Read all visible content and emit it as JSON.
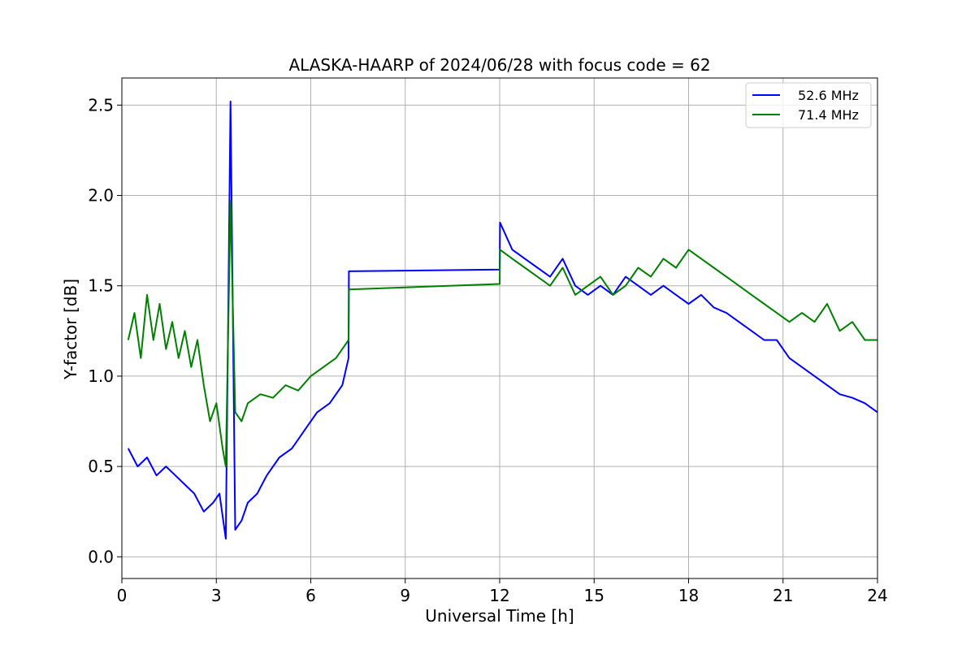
{
  "chart_data": {
    "type": "line",
    "title": "ALASKA-HAARP of 2024/06/28 with focus code = 62",
    "xlabel": "Universal Time [h]",
    "ylabel": "Y-factor [dB]",
    "xlim": [
      0,
      24
    ],
    "ylim": [
      -0.12,
      2.65
    ],
    "xticks": [
      0,
      3,
      6,
      9,
      12,
      15,
      18,
      21,
      24
    ],
    "xtick_labels": [
      "0",
      "3",
      "6",
      "9",
      "12",
      "15",
      "18",
      "21",
      "24"
    ],
    "yticks": [
      0.0,
      0.5,
      1.0,
      1.5,
      2.0,
      2.5
    ],
    "ytick_labels": [
      "0.0",
      "0.5",
      "1.0",
      "1.5",
      "2.0",
      "2.5"
    ],
    "grid": true,
    "legend_position": "upper right",
    "series": [
      {
        "name": "52.6 MHz",
        "color": "#0000ff",
        "x": [
          0.2,
          0.5,
          0.8,
          1.1,
          1.4,
          1.7,
          2.0,
          2.3,
          2.6,
          2.9,
          3.1,
          3.3,
          3.45,
          3.6,
          3.8,
          4.0,
          4.3,
          4.6,
          5.0,
          5.4,
          5.8,
          6.2,
          6.6,
          7.0,
          7.2,
          7.21,
          12.0,
          12.01,
          12.4,
          12.8,
          13.2,
          13.6,
          14.0,
          14.4,
          14.8,
          15.2,
          15.6,
          16.0,
          16.4,
          16.8,
          17.2,
          17.6,
          18.0,
          18.4,
          18.8,
          19.2,
          19.6,
          20.0,
          20.4,
          20.8,
          21.2,
          21.6,
          22.0,
          22.4,
          22.8,
          23.2,
          23.6,
          24.0
        ],
        "y": [
          0.6,
          0.5,
          0.55,
          0.45,
          0.5,
          0.45,
          0.4,
          0.35,
          0.25,
          0.3,
          0.35,
          0.1,
          2.52,
          0.15,
          0.2,
          0.3,
          0.35,
          0.45,
          0.55,
          0.6,
          0.7,
          0.8,
          0.85,
          0.95,
          1.1,
          1.58,
          1.59,
          1.85,
          1.7,
          1.65,
          1.6,
          1.55,
          1.65,
          1.5,
          1.45,
          1.5,
          1.45,
          1.55,
          1.5,
          1.45,
          1.5,
          1.45,
          1.4,
          1.45,
          1.38,
          1.35,
          1.3,
          1.25,
          1.2,
          1.2,
          1.1,
          1.05,
          1.0,
          0.95,
          0.9,
          0.88,
          0.85,
          0.8
        ]
      },
      {
        "name": "71.4 MHz",
        "color": "#008000",
        "x": [
          0.2,
          0.4,
          0.6,
          0.8,
          1.0,
          1.2,
          1.4,
          1.6,
          1.8,
          2.0,
          2.2,
          2.4,
          2.6,
          2.8,
          3.0,
          3.2,
          3.3,
          3.45,
          3.6,
          3.8,
          4.0,
          4.4,
          4.8,
          5.2,
          5.6,
          6.0,
          6.4,
          6.8,
          7.0,
          7.2,
          7.21,
          12.0,
          12.01,
          12.4,
          12.8,
          13.2,
          13.6,
          14.0,
          14.4,
          14.8,
          15.2,
          15.6,
          16.0,
          16.4,
          16.8,
          17.2,
          17.6,
          18.0,
          18.4,
          18.8,
          19.2,
          19.6,
          20.0,
          20.4,
          20.8,
          21.2,
          21.6,
          22.0,
          22.4,
          22.8,
          23.2,
          23.6,
          24.0
        ],
        "y": [
          1.2,
          1.35,
          1.1,
          1.45,
          1.2,
          1.4,
          1.15,
          1.3,
          1.1,
          1.25,
          1.05,
          1.2,
          0.95,
          0.75,
          0.85,
          0.6,
          0.5,
          1.97,
          0.8,
          0.75,
          0.85,
          0.9,
          0.88,
          0.95,
          0.92,
          1.0,
          1.05,
          1.1,
          1.15,
          1.2,
          1.48,
          1.51,
          1.7,
          1.65,
          1.6,
          1.55,
          1.5,
          1.6,
          1.45,
          1.5,
          1.55,
          1.45,
          1.5,
          1.6,
          1.55,
          1.65,
          1.6,
          1.7,
          1.65,
          1.6,
          1.55,
          1.5,
          1.45,
          1.4,
          1.35,
          1.3,
          1.35,
          1.3,
          1.4,
          1.25,
          1.3,
          1.2,
          1.2
        ]
      }
    ]
  }
}
